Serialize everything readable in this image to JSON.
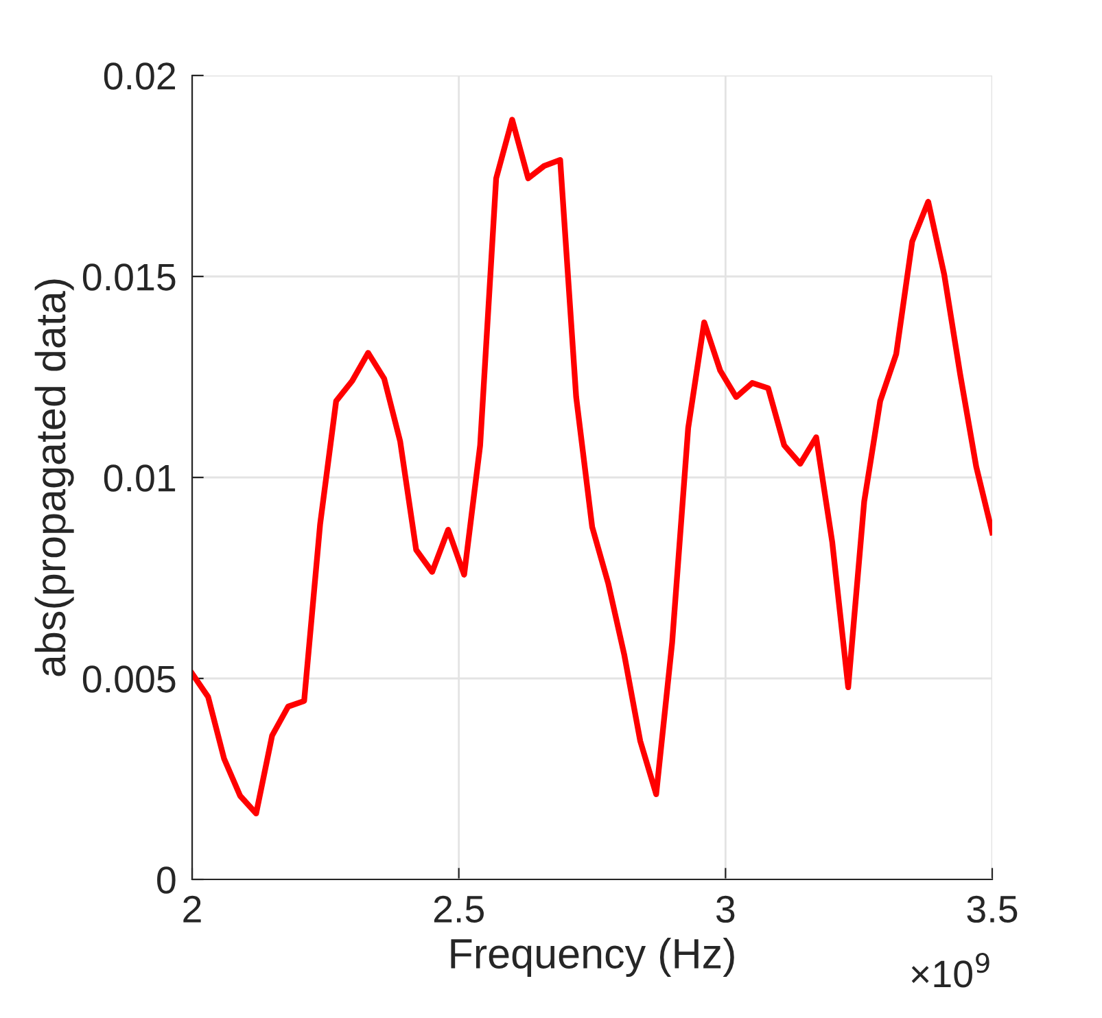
{
  "chart_data": {
    "type": "line",
    "xlabel": "Frequency (Hz)",
    "ylabel": "abs(propagated data)",
    "annotations": [
      "×10$^{9}$"
    ],
    "x": [
      2.0,
      2.03,
      2.06,
      2.09,
      2.12,
      2.15,
      2.18,
      2.21,
      2.24,
      2.27,
      2.3,
      2.33,
      2.36,
      2.39,
      2.42,
      2.45,
      2.48,
      2.51,
      2.54,
      2.57,
      2.6,
      2.63,
      2.66,
      2.69,
      2.72,
      2.75,
      2.78,
      2.81,
      2.84,
      2.87,
      2.9,
      2.93,
      2.96,
      2.99,
      3.02,
      3.05,
      3.08,
      3.11,
      3.14,
      3.17,
      3.2,
      3.23,
      3.26,
      3.29,
      3.32,
      3.35,
      3.38,
      3.41,
      3.44,
      3.47,
      3.5
    ],
    "series": [
      {
        "color": "#ff0000",
        "values": [
          0.00512,
          0.00454,
          0.003,
          0.00208,
          0.00164,
          0.00358,
          0.0043,
          0.00444,
          0.00884,
          0.0119,
          0.0124,
          0.0131,
          0.01246,
          0.0109,
          0.0082,
          0.00765,
          0.0087,
          0.00758,
          0.0108,
          0.01744,
          0.0189,
          0.01744,
          0.01775,
          0.0179,
          0.012,
          0.00877,
          0.00737,
          0.0056,
          0.00345,
          0.00212,
          0.0059,
          0.01123,
          0.01386,
          0.01266,
          0.012,
          0.01235,
          0.01222,
          0.0108,
          0.01034,
          0.011,
          0.0084,
          0.00478,
          0.0094,
          0.0119,
          0.01307,
          0.01587,
          0.01686,
          0.01505,
          0.01256,
          0.01027,
          0.00863
        ]
      }
    ],
    "xlim": [
      2,
      3.5
    ],
    "xticks": [
      2,
      2.5,
      3,
      3.5
    ],
    "ylim": [
      0,
      0.02
    ],
    "yticks": [
      0,
      0.005,
      0.01,
      0.015,
      0.02
    ],
    "grid": true,
    "line_style": "solid",
    "marker": "none"
  }
}
